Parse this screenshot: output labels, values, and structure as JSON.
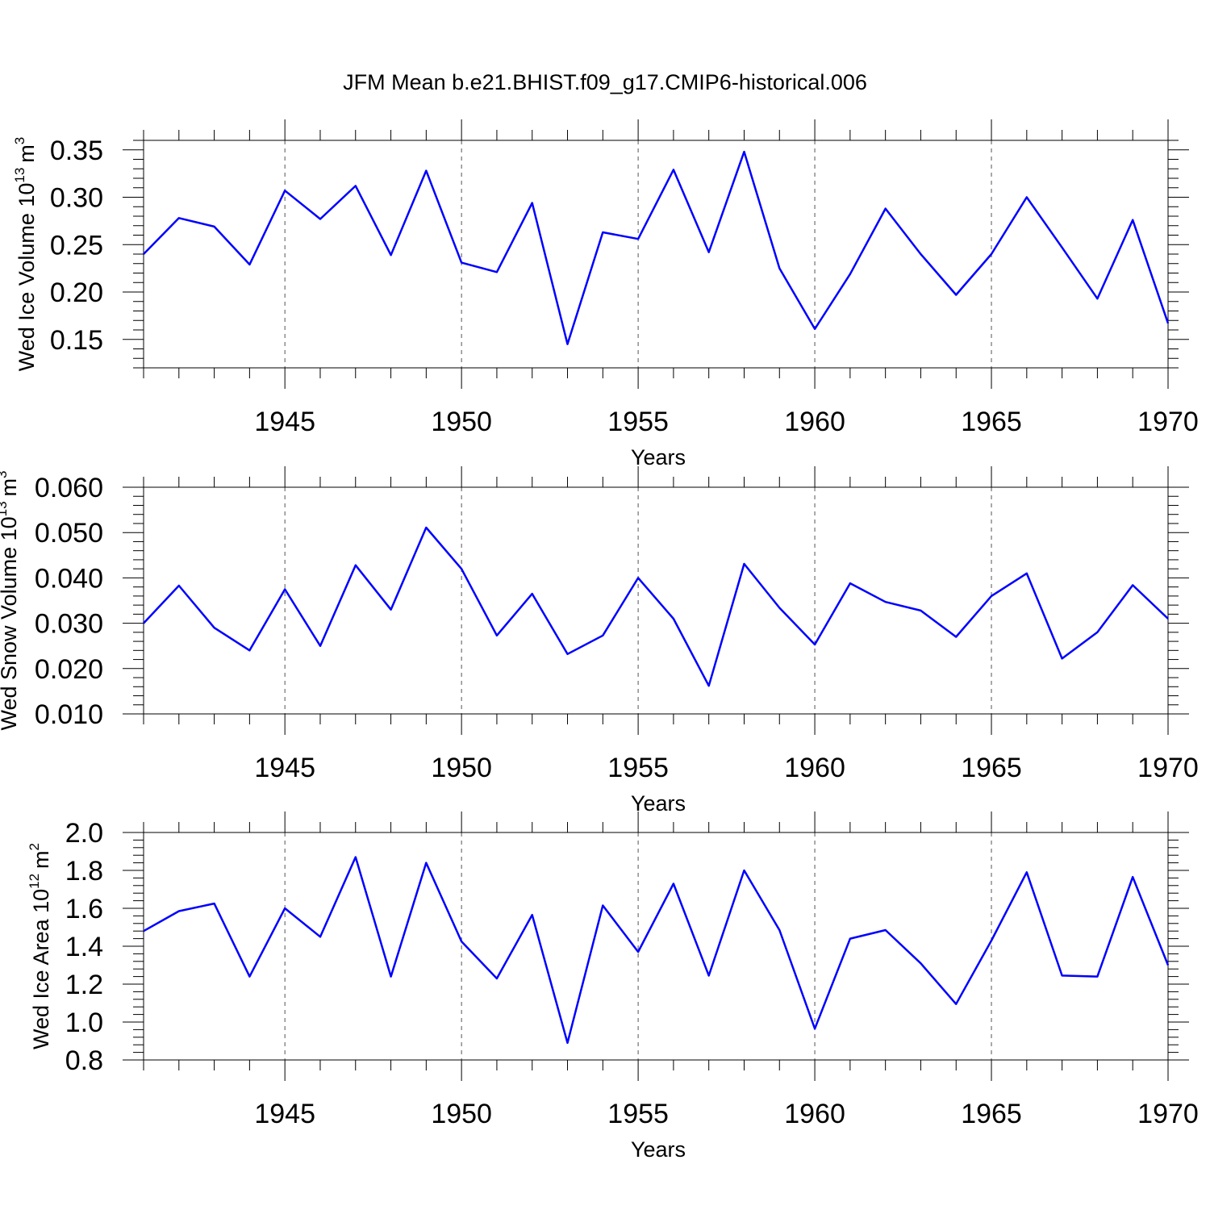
{
  "title": "JFM Mean b.e21.BHIST.f09_g17.CMIP6-historical.006",
  "chart_data": [
    {
      "type": "line",
      "ylabel_main": "Wed Ice Volume 10",
      "ylabel_exp": "13",
      "ylabel_unit": "m",
      "ylabel_unit_exp": "3",
      "xlabel": "Years",
      "xlim": [
        1941,
        1970
      ],
      "ylim": [
        0.12,
        0.36
      ],
      "yticks": [
        0.15,
        0.2,
        0.25,
        0.3,
        0.35
      ],
      "ytick_labels": [
        "0.15",
        "0.20",
        "0.25",
        "0.30",
        "0.35"
      ],
      "ytick_minor": 0.01,
      "xticks": [
        1945,
        1950,
        1955,
        1960,
        1965,
        1970
      ],
      "xtick_labels": [
        "1945",
        "1950",
        "1955",
        "1960",
        "1965",
        "1970"
      ],
      "x": [
        1941,
        1942,
        1943,
        1944,
        1945,
        1946,
        1947,
        1948,
        1949,
        1950,
        1951,
        1952,
        1953,
        1954,
        1955,
        1956,
        1957,
        1958,
        1959,
        1960,
        1961,
        1962,
        1963,
        1964,
        1965,
        1966,
        1967,
        1968,
        1969,
        1970
      ],
      "series": [
        {
          "name": "Wed Ice Volume",
          "color": "#0000ff",
          "values": [
            0.24,
            0.278,
            0.269,
            0.229,
            0.307,
            0.277,
            0.312,
            0.239,
            0.328,
            0.231,
            0.221,
            0.294,
            0.145,
            0.263,
            0.256,
            0.329,
            0.242,
            0.348,
            0.225,
            0.161,
            0.219,
            0.288,
            0.24,
            0.197,
            0.24,
            0.3,
            0.247,
            0.193,
            0.276,
            0.167
          ]
        }
      ]
    },
    {
      "type": "line",
      "ylabel_main": "Wed Snow Volume 10",
      "ylabel_exp": "13",
      "ylabel_unit": "m",
      "ylabel_unit_exp": "3",
      "xlabel": "Years",
      "xlim": [
        1941,
        1970
      ],
      "ylim": [
        0.01,
        0.06
      ],
      "yticks": [
        0.01,
        0.02,
        0.03,
        0.04,
        0.05,
        0.06
      ],
      "ytick_labels": [
        "0.010",
        "0.020",
        "0.030",
        "0.040",
        "0.050",
        "0.060"
      ],
      "ytick_minor": 0.002,
      "xticks": [
        1945,
        1950,
        1955,
        1960,
        1965,
        1970
      ],
      "xtick_labels": [
        "1945",
        "1950",
        "1955",
        "1960",
        "1965",
        "1970"
      ],
      "x": [
        1941,
        1942,
        1943,
        1944,
        1945,
        1946,
        1947,
        1948,
        1949,
        1950,
        1951,
        1952,
        1953,
        1954,
        1955,
        1956,
        1957,
        1958,
        1959,
        1960,
        1961,
        1962,
        1963,
        1964,
        1965,
        1966,
        1967,
        1968,
        1969,
        1970
      ],
      "series": [
        {
          "name": "Wed Snow Volume",
          "color": "#0000ff",
          "values": [
            0.03,
            0.0383,
            0.029,
            0.024,
            0.0375,
            0.025,
            0.0428,
            0.033,
            0.0511,
            0.042,
            0.0273,
            0.0365,
            0.0232,
            0.0273,
            0.04,
            0.031,
            0.0162,
            0.0431,
            0.0334,
            0.0253,
            0.0388,
            0.0347,
            0.0328,
            0.027,
            0.036,
            0.041,
            0.0222,
            0.028,
            0.0384,
            0.031
          ]
        }
      ]
    },
    {
      "type": "line",
      "ylabel_main": "Wed Ice Area 10",
      "ylabel_exp": "12",
      "ylabel_unit": "m",
      "ylabel_unit_exp": "2",
      "xlabel": "Years",
      "xlim": [
        1941,
        1970
      ],
      "ylim": [
        0.8,
        2.0
      ],
      "yticks": [
        0.8,
        1.0,
        1.2,
        1.4,
        1.6,
        1.8,
        2.0
      ],
      "ytick_labels": [
        "0.8",
        "1.0",
        "1.2",
        "1.4",
        "1.6",
        "1.8",
        "2.0"
      ],
      "ytick_minor": 0.04,
      "xticks": [
        1945,
        1950,
        1955,
        1960,
        1965,
        1970
      ],
      "xtick_labels": [
        "1945",
        "1950",
        "1955",
        "1960",
        "1965",
        "1970"
      ],
      "x": [
        1941,
        1942,
        1943,
        1944,
        1945,
        1946,
        1947,
        1948,
        1949,
        1950,
        1951,
        1952,
        1953,
        1954,
        1955,
        1956,
        1957,
        1958,
        1959,
        1960,
        1961,
        1962,
        1963,
        1964,
        1965,
        1966,
        1967,
        1968,
        1969,
        1970
      ],
      "series": [
        {
          "name": "Wed Ice Area",
          "color": "#0000ff",
          "values": [
            1.48,
            1.585,
            1.625,
            1.24,
            1.6,
            1.45,
            1.87,
            1.24,
            1.84,
            1.425,
            1.23,
            1.565,
            0.89,
            1.615,
            1.37,
            1.73,
            1.245,
            1.8,
            1.485,
            0.965,
            1.44,
            1.485,
            1.31,
            1.095,
            1.43,
            1.79,
            1.245,
            1.24,
            1.765,
            1.3
          ]
        }
      ]
    }
  ]
}
